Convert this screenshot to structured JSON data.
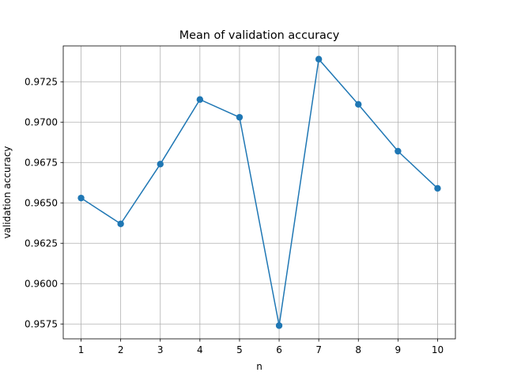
{
  "chart_data": {
    "type": "line",
    "title": "Mean of validation accuracy",
    "xlabel": "n",
    "ylabel": "validation accuracy",
    "x": [
      1,
      2,
      3,
      4,
      5,
      6,
      7,
      8,
      9,
      10
    ],
    "y": [
      0.9653,
      0.9637,
      0.9674,
      0.9714,
      0.9703,
      0.9574,
      0.9739,
      0.9711,
      0.9682,
      0.9659
    ],
    "xticks": [
      "1",
      "2",
      "3",
      "4",
      "5",
      "6",
      "7",
      "8",
      "9",
      "10"
    ],
    "yticks": [
      "0.9575",
      "0.9600",
      "0.9625",
      "0.9650",
      "0.9675",
      "0.9700",
      "0.9725"
    ],
    "xlim": [
      0.55,
      10.45
    ],
    "ylim": [
      0.95658,
      0.97472
    ],
    "grid": true,
    "marker": "circle",
    "color": "#1f77b4"
  }
}
